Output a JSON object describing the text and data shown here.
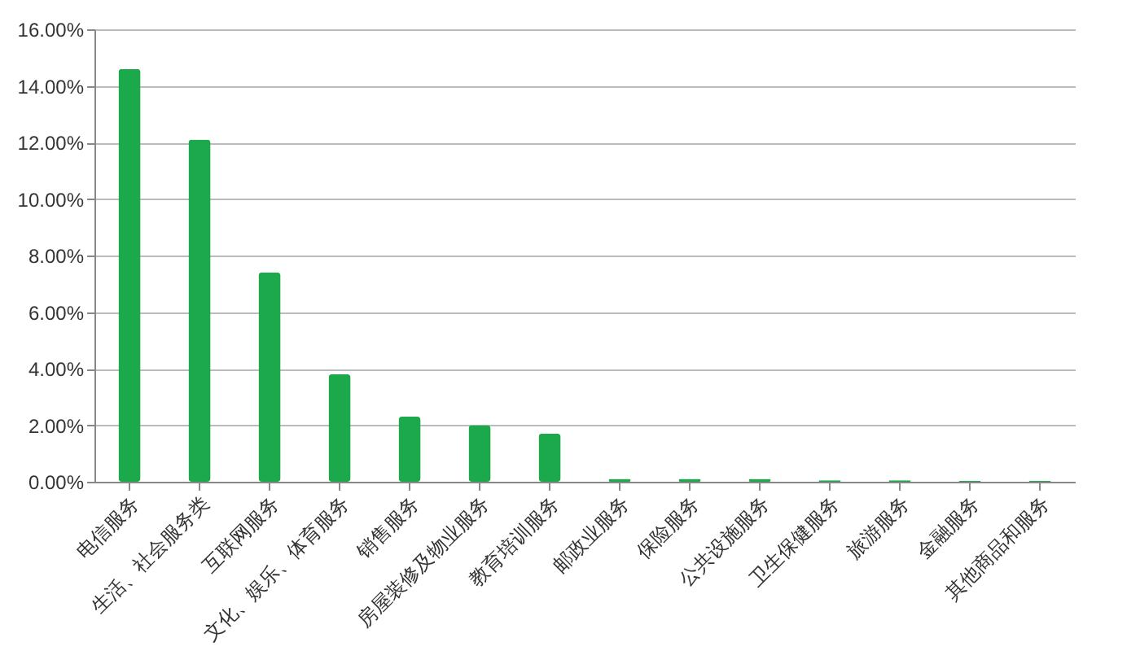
{
  "chart_data": {
    "type": "bar",
    "categories": [
      "电信服务",
      "生活、社会服务类",
      "互联网服务",
      "文化、娱乐、体育服务",
      "销售服务",
      "房屋装修及物业服务",
      "教育培训服务",
      "邮政业服务",
      "保险服务",
      "公共设施服务",
      "卫生保健服务",
      "旅游服务",
      "金融服务",
      "其他商品和服务"
    ],
    "values": [
      14.6,
      12.1,
      7.4,
      3.8,
      2.3,
      2.0,
      1.7,
      0.1,
      0.1,
      0.1,
      0.05,
      0.05,
      0.03,
      0.03
    ],
    "color": "#1ba94c",
    "ylim": [
      0,
      16
    ],
    "yticks": [
      {
        "value": 0,
        "label": "0.00%"
      },
      {
        "value": 2,
        "label": "2.00%"
      },
      {
        "value": 4,
        "label": "4.00%"
      },
      {
        "value": 6,
        "label": "6.00%"
      },
      {
        "value": 8,
        "label": "8.00%"
      },
      {
        "value": 10,
        "label": "10.00%"
      },
      {
        "value": 12,
        "label": "12.00%"
      },
      {
        "value": 14,
        "label": "14.00%"
      },
      {
        "value": 16,
        "label": "16.00%"
      }
    ],
    "grid": "y"
  }
}
